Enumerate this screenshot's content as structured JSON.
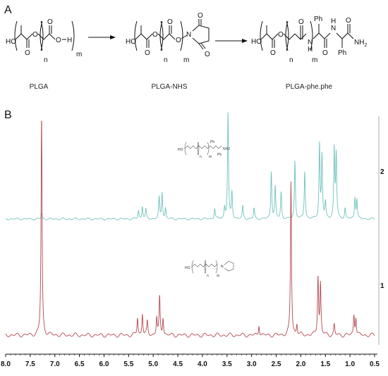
{
  "panel_a": {
    "label": "A",
    "structures": [
      {
        "caption": "PLGA",
        "atoms": {
          "ho": "HO",
          "end": "H",
          "n": "n",
          "m": "m"
        }
      },
      {
        "caption": "PLGA-NHS",
        "atoms": {
          "ho": "HO",
          "n_atom": "N",
          "n": "n",
          "m": "m"
        }
      },
      {
        "caption": "PLGA-phe.phe",
        "atoms": {
          "ho": "HO",
          "nh1": "N",
          "h1": "H",
          "ph1": "Ph",
          "nh2": "N",
          "h2": "H",
          "ph2": "Ph",
          "nh2_end": "NH",
          "sub2": "2",
          "n": "n",
          "m": "m"
        }
      }
    ]
  },
  "panel_b": {
    "label": "B",
    "trace_labels": [
      "2",
      "1"
    ],
    "inset_top_atoms": {
      "ho": "HO",
      "ph1": "Ph",
      "ph2": "Ph",
      "nh2": "NH2",
      "n": "n",
      "m": "m"
    },
    "inset_bottom_atoms": {
      "ho": "HO",
      "n_atom": "N",
      "n": "n",
      "m": "m"
    }
  },
  "chart_data": {
    "type": "line",
    "title": "",
    "xlabel": "",
    "ylabel": "",
    "xlim": [
      8.0,
      0.5
    ],
    "x_ticks": [
      "8.0",
      "7.5",
      "7.0",
      "6.5",
      "6.0",
      "5.5",
      "5.0",
      "4.5",
      "4.0",
      "3.5",
      "3.0",
      "2.5",
      "2.0",
      "1.5",
      "1.0",
      "0.5"
    ],
    "series": [
      {
        "name": "2",
        "color": "#6fc3bd",
        "peaks": [
          {
            "x": 7.27,
            "height": 0.05
          },
          {
            "x": 5.3,
            "height": 0.08
          },
          {
            "x": 5.22,
            "height": 0.12
          },
          {
            "x": 5.15,
            "height": 0.09
          },
          {
            "x": 4.88,
            "height": 0.2
          },
          {
            "x": 4.82,
            "height": 0.25
          },
          {
            "x": 4.75,
            "height": 0.1
          },
          {
            "x": 3.75,
            "height": 0.1
          },
          {
            "x": 3.55,
            "height": 0.1
          },
          {
            "x": 3.48,
            "height": 1.0
          },
          {
            "x": 3.4,
            "height": 0.25
          },
          {
            "x": 3.18,
            "height": 0.12
          },
          {
            "x": 2.95,
            "height": 0.1
          },
          {
            "x": 2.6,
            "height": 0.45
          },
          {
            "x": 2.52,
            "height": 0.3
          },
          {
            "x": 2.4,
            "height": 0.25
          },
          {
            "x": 2.12,
            "height": 0.55
          },
          {
            "x": 1.92,
            "height": 0.45
          },
          {
            "x": 1.62,
            "height": 0.7
          },
          {
            "x": 1.57,
            "height": 0.6
          },
          {
            "x": 1.5,
            "height": 0.15
          },
          {
            "x": 1.32,
            "height": 0.65
          },
          {
            "x": 1.28,
            "height": 0.6
          },
          {
            "x": 1.1,
            "height": 0.1
          },
          {
            "x": 0.9,
            "height": 0.2
          },
          {
            "x": 0.86,
            "height": 0.18
          }
        ]
      },
      {
        "name": "1",
        "color": "#b5474f",
        "peaks": [
          {
            "x": 7.27,
            "height": 1.0
          },
          {
            "x": 5.32,
            "height": 0.08
          },
          {
            "x": 5.22,
            "height": 0.1
          },
          {
            "x": 5.12,
            "height": 0.06
          },
          {
            "x": 4.93,
            "height": 0.08
          },
          {
            "x": 4.87,
            "height": 0.17
          },
          {
            "x": 4.8,
            "height": 0.08
          },
          {
            "x": 2.85,
            "height": 0.05
          },
          {
            "x": 2.2,
            "height": 0.7
          },
          {
            "x": 2.08,
            "height": 0.05
          },
          {
            "x": 1.65,
            "height": 0.27
          },
          {
            "x": 1.6,
            "height": 0.23
          },
          {
            "x": 1.32,
            "height": 0.05
          },
          {
            "x": 0.92,
            "height": 0.09
          },
          {
            "x": 0.88,
            "height": 0.08
          }
        ]
      }
    ]
  }
}
